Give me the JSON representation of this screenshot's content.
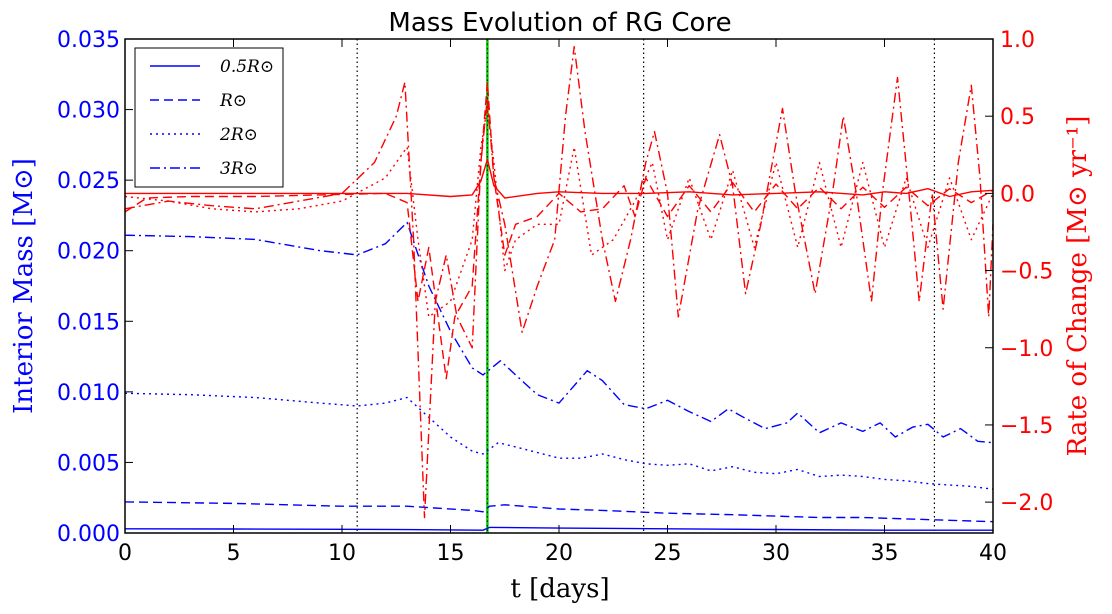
{
  "chart_data": {
    "type": "line",
    "title": "Mass Evolution of RG Core",
    "xlabel": "t  [days]",
    "ylabel_left": "Interior Mass  [M⊙]",
    "ylabel_right": "Rate of Change  [M⊙ yr⁻¹]",
    "xlim": [
      0,
      40
    ],
    "ylim_left": [
      0,
      0.035
    ],
    "ylim_right": [
      -2.2,
      1.0
    ],
    "x_ticks": [
      "0",
      "5",
      "10",
      "15",
      "20",
      "25",
      "30",
      "35",
      "40"
    ],
    "y_ticks_left": [
      "0.000",
      "0.005",
      "0.010",
      "0.015",
      "0.020",
      "0.025",
      "0.030",
      "0.035"
    ],
    "y_ticks_right": [
      "−2.0",
      "−1.5",
      "−1.0",
      "−0.5",
      "0.0",
      "0.5",
      "1.0"
    ],
    "legend_position": "top-left",
    "grid": false,
    "vertical_lines": {
      "dotted_black": [
        10.7,
        23.9,
        37.3
      ],
      "solid_green": [
        16.7
      ]
    },
    "colors": {
      "left_axis": "#0000ff",
      "right_axis": "#ff0000",
      "marker": "#00cc00"
    },
    "series": [
      {
        "name": "0.5R⊙",
        "axis": "left",
        "style": "solid",
        "x": [
          0,
          5,
          10,
          13,
          16.5,
          16.8,
          17,
          20,
          25,
          30,
          35,
          40
        ],
        "y": [
          0.0003,
          0.00028,
          0.00026,
          0.00024,
          0.0002,
          0.0004,
          0.0004,
          0.00035,
          0.0003,
          0.00025,
          0.0002,
          0.0002
        ]
      },
      {
        "name": "R⊙",
        "axis": "left",
        "style": "dashed",
        "x": [
          0,
          5,
          10,
          13,
          16,
          16.5,
          16.8,
          17.5,
          20,
          22,
          25,
          28,
          30,
          32,
          34,
          36,
          38,
          40
        ],
        "y": [
          0.0022,
          0.0021,
          0.0019,
          0.0019,
          0.0016,
          0.0015,
          0.0019,
          0.002,
          0.0017,
          0.0016,
          0.0014,
          0.0013,
          0.0012,
          0.0011,
          0.0011,
          0.001,
          0.0009,
          0.0008
        ]
      },
      {
        "name": "2R⊙",
        "axis": "left",
        "style": "dotted",
        "x": [
          0,
          3,
          6,
          9,
          10.7,
          12,
          13,
          14,
          15,
          16,
          16.5,
          17.2,
          18,
          19,
          20,
          21,
          22,
          23,
          24,
          25,
          26,
          27,
          28,
          29,
          30,
          31,
          32,
          33,
          34,
          35,
          36,
          37,
          38,
          39,
          40
        ],
        "y": [
          0.0099,
          0.0098,
          0.0096,
          0.0092,
          0.009,
          0.0092,
          0.0096,
          0.0082,
          0.0068,
          0.0058,
          0.0056,
          0.0064,
          0.0061,
          0.0057,
          0.0053,
          0.0053,
          0.0056,
          0.0052,
          0.0049,
          0.0048,
          0.0049,
          0.0044,
          0.0047,
          0.0043,
          0.0042,
          0.0045,
          0.004,
          0.0041,
          0.004,
          0.0038,
          0.0037,
          0.0035,
          0.0034,
          0.0033,
          0.0031
        ]
      },
      {
        "name": "3R⊙",
        "axis": "left",
        "style": "dashdot",
        "x": [
          0,
          3,
          6,
          9,
          10.7,
          12,
          13,
          14,
          15,
          16,
          16.5,
          17.3,
          18,
          19,
          20,
          21.3,
          22,
          23,
          24,
          25,
          26,
          27,
          27.8,
          28.5,
          29.5,
          30.5,
          31,
          32,
          33,
          34,
          34.8,
          35.5,
          36.3,
          37,
          37.7,
          38.5,
          39.3,
          40
        ],
        "y": [
          0.0211,
          0.021,
          0.0208,
          0.02,
          0.0197,
          0.0205,
          0.022,
          0.0175,
          0.0143,
          0.0117,
          0.0112,
          0.0122,
          0.0112,
          0.0098,
          0.0092,
          0.0115,
          0.0108,
          0.0091,
          0.0088,
          0.0094,
          0.0086,
          0.0079,
          0.0088,
          0.0082,
          0.0074,
          0.0078,
          0.0085,
          0.0071,
          0.0078,
          0.0072,
          0.0078,
          0.0068,
          0.0075,
          0.0077,
          0.0068,
          0.0074,
          0.0065,
          0.0064
        ]
      },
      {
        "name": "",
        "axis": "right",
        "style": "solid",
        "x": [
          0,
          5,
          10,
          13,
          15,
          16,
          16.4,
          16.7,
          17.0,
          17.5,
          19,
          20,
          22,
          24,
          26,
          28,
          30,
          32,
          34,
          35,
          36,
          37,
          38,
          39,
          40
        ],
        "y": [
          0.0,
          0.0,
          0.0,
          0.0,
          -0.02,
          -0.01,
          0.08,
          0.22,
          0.05,
          -0.03,
          0.0,
          0.01,
          0.0,
          0.0,
          0.01,
          -0.01,
          0.0,
          0.01,
          -0.01,
          0.01,
          0.0,
          0.03,
          -0.02,
          0.01,
          0.02
        ]
      },
      {
        "name": "",
        "axis": "right",
        "style": "dashed",
        "x": [
          0,
          1,
          3,
          6,
          9,
          12,
          13,
          13.5,
          14,
          14.8,
          15.2,
          16,
          16.4,
          16.7,
          17.0,
          17.5,
          18,
          19,
          20,
          21,
          22,
          23,
          23.5,
          24,
          25,
          26,
          27,
          28,
          29,
          30,
          31,
          32,
          33,
          34,
          35,
          36,
          37,
          38,
          39,
          40
        ],
        "y": [
          -0.12,
          -0.03,
          -0.02,
          -0.02,
          -0.01,
          0.0,
          -0.06,
          -0.7,
          -0.35,
          -1.2,
          -0.8,
          -0.6,
          0.2,
          0.72,
          0.1,
          -0.4,
          -0.2,
          -0.15,
          0.0,
          -0.12,
          -0.1,
          0.05,
          -0.15,
          0.1,
          -0.15,
          0.05,
          -0.12,
          0.07,
          -0.12,
          0.06,
          -0.1,
          0.04,
          -0.1,
          0.04,
          -0.09,
          0.04,
          -0.08,
          0.03,
          -0.06,
          0.02
        ]
      },
      {
        "name": "",
        "axis": "right",
        "style": "dotted",
        "x": [
          0,
          2,
          4,
          6,
          8,
          10,
          12,
          13,
          13.5,
          14,
          15,
          16,
          16.4,
          16.7,
          17.0,
          17.5,
          18,
          19,
          20,
          20.7,
          21.5,
          22.5,
          23.5,
          24.3,
          25,
          26,
          27,
          28,
          29,
          30,
          31,
          32,
          33,
          34,
          35,
          36,
          37,
          38,
          39,
          40
        ],
        "y": [
          -0.02,
          -0.05,
          -0.1,
          -0.12,
          -0.1,
          -0.05,
          0.1,
          0.3,
          -0.3,
          -0.8,
          -0.7,
          -0.3,
          0.3,
          0.55,
          0.2,
          -0.5,
          -0.3,
          -0.2,
          -0.2,
          0.3,
          -0.4,
          -0.3,
          -0.05,
          0.2,
          -0.3,
          0.1,
          -0.3,
          0.15,
          -0.35,
          0.2,
          -0.35,
          0.2,
          -0.35,
          0.2,
          -0.35,
          0.1,
          -0.35,
          0.1,
          -0.3,
          0.0
        ]
      },
      {
        "name": "",
        "axis": "right",
        "style": "dashdot",
        "x": [
          0,
          2,
          4,
          6,
          8,
          10,
          11.5,
          12.5,
          12.9,
          13.3,
          13.8,
          14.3,
          14.8,
          15.3,
          16,
          16.4,
          16.7,
          17.0,
          17.5,
          18.3,
          19,
          19.8,
          20.3,
          20.7,
          21.2,
          22,
          22.6,
          23.3,
          24,
          24.4,
          25,
          25.5,
          26.4,
          27.4,
          28,
          28.6,
          29.3,
          30.3,
          30.9,
          31.8,
          32.6,
          33.1,
          33.7,
          34.4,
          34.9,
          35.6,
          36.2,
          36.6,
          37.2,
          37.7,
          38.4,
          39,
          39.4,
          39.8,
          40
        ],
        "y": [
          -0.1,
          -0.05,
          -0.08,
          -0.1,
          -0.05,
          0.0,
          0.2,
          0.5,
          0.72,
          -0.3,
          -2.1,
          -0.7,
          -0.4,
          -0.8,
          -1.0,
          0.2,
          0.62,
          0.1,
          -0.2,
          -0.9,
          -0.6,
          -0.3,
          0.5,
          0.95,
          0.4,
          -0.3,
          -0.7,
          -0.3,
          0.2,
          0.4,
          0.0,
          -0.8,
          -0.1,
          0.38,
          0.05,
          -0.65,
          -0.2,
          0.55,
          0.0,
          -0.65,
          0.0,
          0.5,
          0.0,
          -0.7,
          0.0,
          0.75,
          -0.1,
          -0.7,
          0.0,
          -0.75,
          0.2,
          0.7,
          0.1,
          -0.8,
          -0.2
        ]
      }
    ]
  }
}
